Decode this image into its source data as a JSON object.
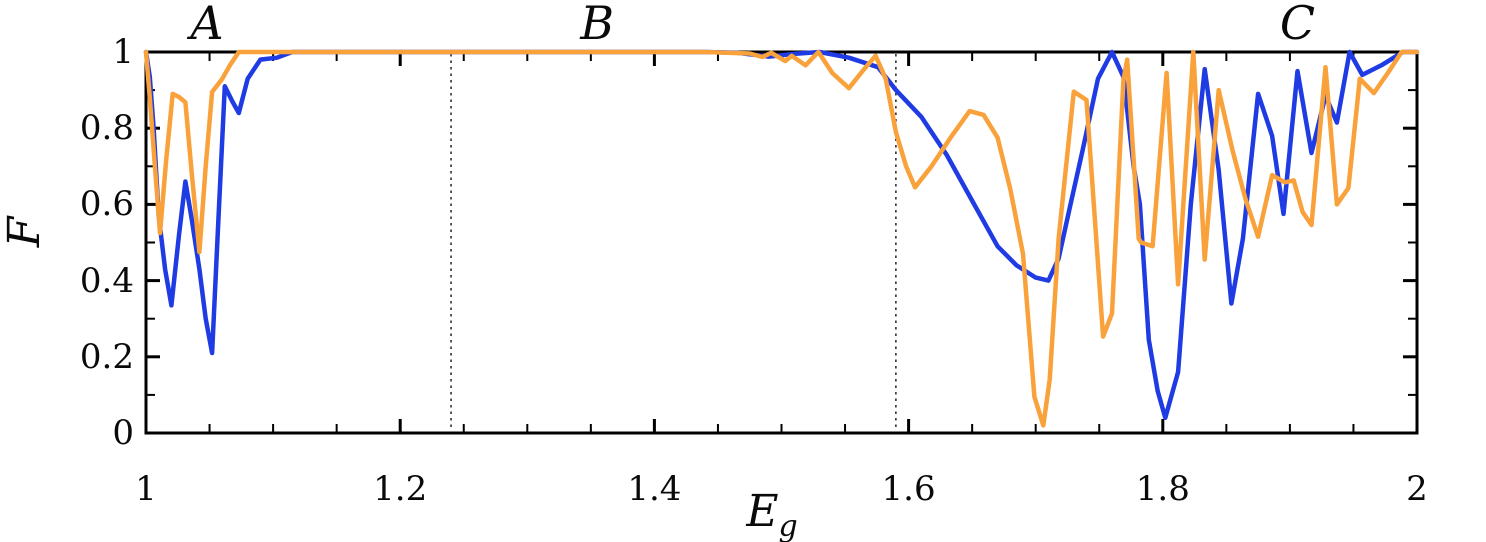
{
  "colors": {
    "background": "#ffffff",
    "axis": "#000000",
    "text": "#0a0a0a",
    "series_blue": "#1F3BE3",
    "series_orange": "#F9A23C",
    "boundary_line": "#222222"
  },
  "chart_data": {
    "type": "line",
    "title": "",
    "xlabel": {
      "main": "E",
      "sub": "g"
    },
    "ylabel": "F",
    "xlim": [
      1,
      2
    ],
    "ylim": [
      0,
      1
    ],
    "grid": false,
    "legend": "none",
    "x_major_ticks": [
      {
        "v": 1.0,
        "label": "1"
      },
      {
        "v": 1.2,
        "label": "1.2"
      },
      {
        "v": 1.4,
        "label": "1.4"
      },
      {
        "v": 1.6,
        "label": "1.6"
      },
      {
        "v": 1.8,
        "label": "1.8"
      },
      {
        "v": 2.0,
        "label": "2"
      }
    ],
    "x_minor_step": 0.05,
    "y_major_ticks": [
      {
        "v": 0.0,
        "label": "0"
      },
      {
        "v": 0.2,
        "label": "0.2"
      },
      {
        "v": 0.4,
        "label": "0.4"
      },
      {
        "v": 0.6,
        "label": "0.6"
      },
      {
        "v": 0.8,
        "label": "0.8"
      },
      {
        "v": 1.0,
        "label": "1"
      }
    ],
    "y_minor_step": 0.1,
    "region_labels": [
      {
        "text": "A",
        "x": 1.048
      },
      {
        "text": "B",
        "x": 1.355
      },
      {
        "text": "C",
        "x": 1.906
      }
    ],
    "vlines": [
      1.24,
      1.59
    ],
    "series": [
      {
        "name": "blue",
        "color": "#1F3BE3",
        "points": [
          [
            1.0,
            1.0
          ],
          [
            1.003,
            0.935
          ],
          [
            1.006,
            0.8
          ],
          [
            1.01,
            0.57
          ],
          [
            1.015,
            0.43
          ],
          [
            1.02,
            0.335
          ],
          [
            1.026,
            0.52
          ],
          [
            1.031,
            0.66
          ],
          [
            1.036,
            0.56
          ],
          [
            1.042,
            0.43
          ],
          [
            1.047,
            0.3
          ],
          [
            1.052,
            0.21
          ],
          [
            1.057,
            0.56
          ],
          [
            1.062,
            0.91
          ],
          [
            1.068,
            0.87
          ],
          [
            1.073,
            0.84
          ],
          [
            1.08,
            0.93
          ],
          [
            1.09,
            0.98
          ],
          [
            1.103,
            0.985
          ],
          [
            1.115,
            1.0
          ],
          [
            1.15,
            1.0
          ],
          [
            1.25,
            1.0
          ],
          [
            1.35,
            1.0
          ],
          [
            1.44,
            1.0
          ],
          [
            1.465,
            0.998
          ],
          [
            1.49,
            0.988
          ],
          [
            1.51,
            0.995
          ],
          [
            1.53,
            1.0
          ],
          [
            1.553,
            0.985
          ],
          [
            1.576,
            0.96
          ],
          [
            1.59,
            0.9
          ],
          [
            1.61,
            0.83
          ],
          [
            1.63,
            0.73
          ],
          [
            1.65,
            0.61
          ],
          [
            1.67,
            0.49
          ],
          [
            1.685,
            0.44
          ],
          [
            1.7,
            0.408
          ],
          [
            1.71,
            0.4
          ],
          [
            1.718,
            0.458
          ],
          [
            1.727,
            0.594
          ],
          [
            1.737,
            0.743
          ],
          [
            1.749,
            0.93
          ],
          [
            1.76,
            1.0
          ],
          [
            1.769,
            0.935
          ],
          [
            1.777,
            0.7
          ],
          [
            1.782,
            0.6
          ],
          [
            1.789,
            0.245
          ],
          [
            1.796,
            0.11
          ],
          [
            1.802,
            0.04
          ],
          [
            1.812,
            0.16
          ],
          [
            1.822,
            0.6
          ],
          [
            1.833,
            0.955
          ],
          [
            1.844,
            0.69
          ],
          [
            1.854,
            0.34
          ],
          [
            1.863,
            0.51
          ],
          [
            1.875,
            0.89
          ],
          [
            1.886,
            0.78
          ],
          [
            1.895,
            0.575
          ],
          [
            1.906,
            0.95
          ],
          [
            1.917,
            0.735
          ],
          [
            1.928,
            0.885
          ],
          [
            1.937,
            0.815
          ],
          [
            1.947,
            1.0
          ],
          [
            1.957,
            0.94
          ],
          [
            1.972,
            0.965
          ],
          [
            1.989,
            1.0
          ],
          [
            2.0,
            1.0
          ]
        ]
      },
      {
        "name": "orange",
        "color": "#F9A23C",
        "points": [
          [
            1.0,
            1.0
          ],
          [
            1.003,
            0.88
          ],
          [
            1.007,
            0.7
          ],
          [
            1.011,
            0.525
          ],
          [
            1.016,
            0.72
          ],
          [
            1.021,
            0.89
          ],
          [
            1.026,
            0.882
          ],
          [
            1.031,
            0.868
          ],
          [
            1.036,
            0.68
          ],
          [
            1.042,
            0.475
          ],
          [
            1.047,
            0.7
          ],
          [
            1.052,
            0.895
          ],
          [
            1.06,
            0.93
          ],
          [
            1.066,
            0.965
          ],
          [
            1.073,
            1.0
          ],
          [
            1.15,
            1.0
          ],
          [
            1.25,
            1.0
          ],
          [
            1.35,
            1.0
          ],
          [
            1.44,
            1.0
          ],
          [
            1.475,
            0.996
          ],
          [
            1.485,
            0.987
          ],
          [
            1.492,
            0.998
          ],
          [
            1.503,
            0.976
          ],
          [
            1.508,
            0.99
          ],
          [
            1.519,
            0.965
          ],
          [
            1.529,
            1.0
          ],
          [
            1.54,
            0.945
          ],
          [
            1.553,
            0.905
          ],
          [
            1.565,
            0.955
          ],
          [
            1.574,
            0.99
          ],
          [
            1.582,
            0.93
          ],
          [
            1.59,
            0.79
          ],
          [
            1.598,
            0.7
          ],
          [
            1.605,
            0.645
          ],
          [
            1.618,
            0.7
          ],
          [
            1.633,
            0.775
          ],
          [
            1.648,
            0.845
          ],
          [
            1.659,
            0.835
          ],
          [
            1.67,
            0.775
          ],
          [
            1.68,
            0.64
          ],
          [
            1.69,
            0.47
          ],
          [
            1.699,
            0.095
          ],
          [
            1.706,
            0.02
          ],
          [
            1.711,
            0.14
          ],
          [
            1.718,
            0.51
          ],
          [
            1.73,
            0.896
          ],
          [
            1.74,
            0.874
          ],
          [
            1.753,
            0.253
          ],
          [
            1.76,
            0.314
          ],
          [
            1.769,
            0.926
          ],
          [
            1.772,
            0.98
          ],
          [
            1.781,
            0.51
          ],
          [
            1.783,
            0.5
          ],
          [
            1.792,
            0.49
          ],
          [
            1.803,
            0.945
          ],
          [
            1.812,
            0.39
          ],
          [
            1.824,
            1.0
          ],
          [
            1.833,
            0.455
          ],
          [
            1.844,
            0.9
          ],
          [
            1.855,
            0.74
          ],
          [
            1.865,
            0.615
          ],
          [
            1.875,
            0.515
          ],
          [
            1.886,
            0.677
          ],
          [
            1.896,
            0.658
          ],
          [
            1.903,
            0.663
          ],
          [
            1.91,
            0.58
          ],
          [
            1.917,
            0.546
          ],
          [
            1.928,
            0.96
          ],
          [
            1.937,
            0.6
          ],
          [
            1.946,
            0.643
          ],
          [
            1.955,
            0.93
          ],
          [
            1.966,
            0.892
          ],
          [
            1.977,
            0.945
          ],
          [
            1.988,
            1.0
          ],
          [
            2.0,
            1.0
          ]
        ]
      }
    ]
  }
}
